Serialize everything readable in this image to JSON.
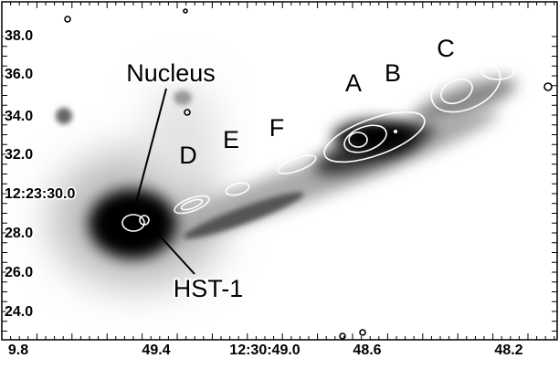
{
  "figure": {
    "y_tick_labels": [
      "38.0",
      "36.0",
      "34.0",
      "32.0",
      "12:23:30.0",
      "28.0",
      "26.0",
      "24.0"
    ],
    "x_tick_labels": [
      "9.8",
      "49.4",
      "12:30:49.0",
      "48.6",
      "48.2"
    ],
    "annotations": {
      "nucleus": "Nucleus",
      "hst1": "HST-1",
      "a": "A",
      "b": "B",
      "c": "C",
      "d": "D",
      "e": "E",
      "f": "F"
    }
  }
}
